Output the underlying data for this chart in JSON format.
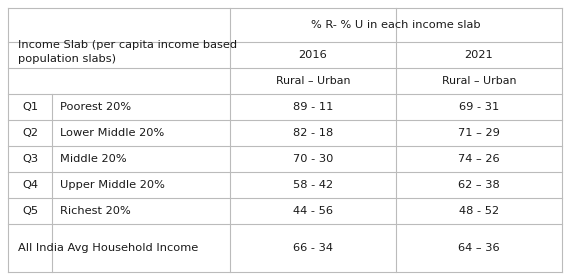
{
  "header_col1_line1": "Income Slab (per capita income based",
  "header_col1_line2": "population slabs)",
  "header_top": "% R- % U in each income slab",
  "header_2016": "2016",
  "header_2021": "2021",
  "subheader": "Rural – Urban",
  "rows": [
    {
      "q": "Q1",
      "label": "Poorest 20%",
      "v2016": "89 - 11",
      "v2021": "69 - 31"
    },
    {
      "q": "Q2",
      "label": "Lower Middle 20%",
      "v2016": "82 - 18",
      "v2021": "71 – 29"
    },
    {
      "q": "Q3",
      "label": "Middle 20%",
      "v2016": "70 - 30",
      "v2021": "74 – 26"
    },
    {
      "q": "Q4",
      "label": "Upper Middle 20%",
      "v2016": "58 - 42",
      "v2021": "62 – 38"
    },
    {
      "q": "Q5",
      "label": "Richest 20%",
      "v2016": "44 - 56",
      "v2021": "48 - 52"
    }
  ],
  "footer_label": "All India Avg Household Income",
  "footer_v2016": "66 - 34",
  "footer_v2021": "64 – 36",
  "bg_color": "#ffffff",
  "line_color": "#bbbbbb",
  "text_color": "#1a1a1a",
  "font_size": 8.2,
  "font_family": "sans-serif"
}
